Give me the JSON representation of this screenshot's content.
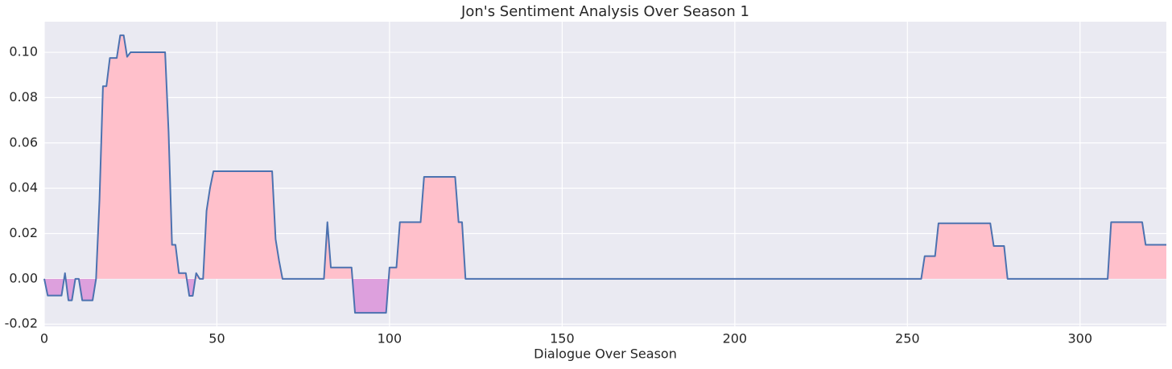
{
  "chart_data": {
    "type": "line",
    "title": "Jon's Sentiment Analysis Over Season 1",
    "xlabel": "Dialogue Over Season",
    "x": [
      0,
      1,
      5,
      6,
      7,
      8,
      9,
      10,
      11,
      14,
      15,
      16,
      17,
      18,
      19,
      21,
      22,
      23,
      24,
      25,
      35,
      36,
      37,
      38,
      39,
      41,
      42,
      43,
      44,
      45,
      46,
      47,
      48,
      49,
      66,
      67,
      68,
      69,
      81,
      82,
      83,
      89,
      90,
      99,
      100,
      102,
      103,
      109,
      110,
      119,
      120,
      121,
      122,
      254,
      255,
      258,
      259,
      274,
      275,
      278,
      279,
      308,
      309,
      318,
      319,
      325
    ],
    "values": [
      0,
      -0.0074,
      -0.0074,
      0.0025,
      -0.0095,
      -0.0095,
      0,
      0,
      -0.0095,
      -0.0095,
      0,
      0.035,
      0.085,
      0.085,
      0.0975,
      0.0975,
      0.1075,
      0.1075,
      0.098,
      0.1,
      0.1,
      0.065,
      0.015,
      0.015,
      0.0025,
      0.0025,
      -0.0075,
      -0.0075,
      0.0025,
      0,
      0,
      0.03,
      0.04,
      0.0475,
      0.0475,
      0.0175,
      0.008,
      0,
      0,
      0.025,
      0.005,
      0.005,
      -0.015,
      -0.015,
      0.005,
      0.005,
      0.025,
      0.025,
      0.045,
      0.045,
      0.025,
      0.025,
      0,
      0,
      0.01,
      0.01,
      0.0245,
      0.0245,
      0.0145,
      0.0145,
      0,
      0,
      0.025,
      0.025,
      0.015,
      0.015
    ],
    "color": "#4c72b0",
    "positive_fill": "#ffc0cb",
    "negative_fill": "#dda0dd",
    "xlim": [
      0,
      325
    ],
    "ylim": [
      -0.021,
      0.1135
    ],
    "xticks": [
      0,
      50,
      100,
      150,
      200,
      250,
      300
    ],
    "yticks": [
      {
        "value": -0.02,
        "label": "-0.02"
      },
      {
        "value": 0,
        "label": "0.00"
      },
      {
        "value": 0.02,
        "label": "0.02"
      },
      {
        "value": 0.04,
        "label": "0.04"
      },
      {
        "value": 0.06,
        "label": "0.06"
      },
      {
        "value": 0.08,
        "label": "0.08"
      },
      {
        "value": 0.1,
        "label": "0.10"
      }
    ],
    "grid": true
  }
}
